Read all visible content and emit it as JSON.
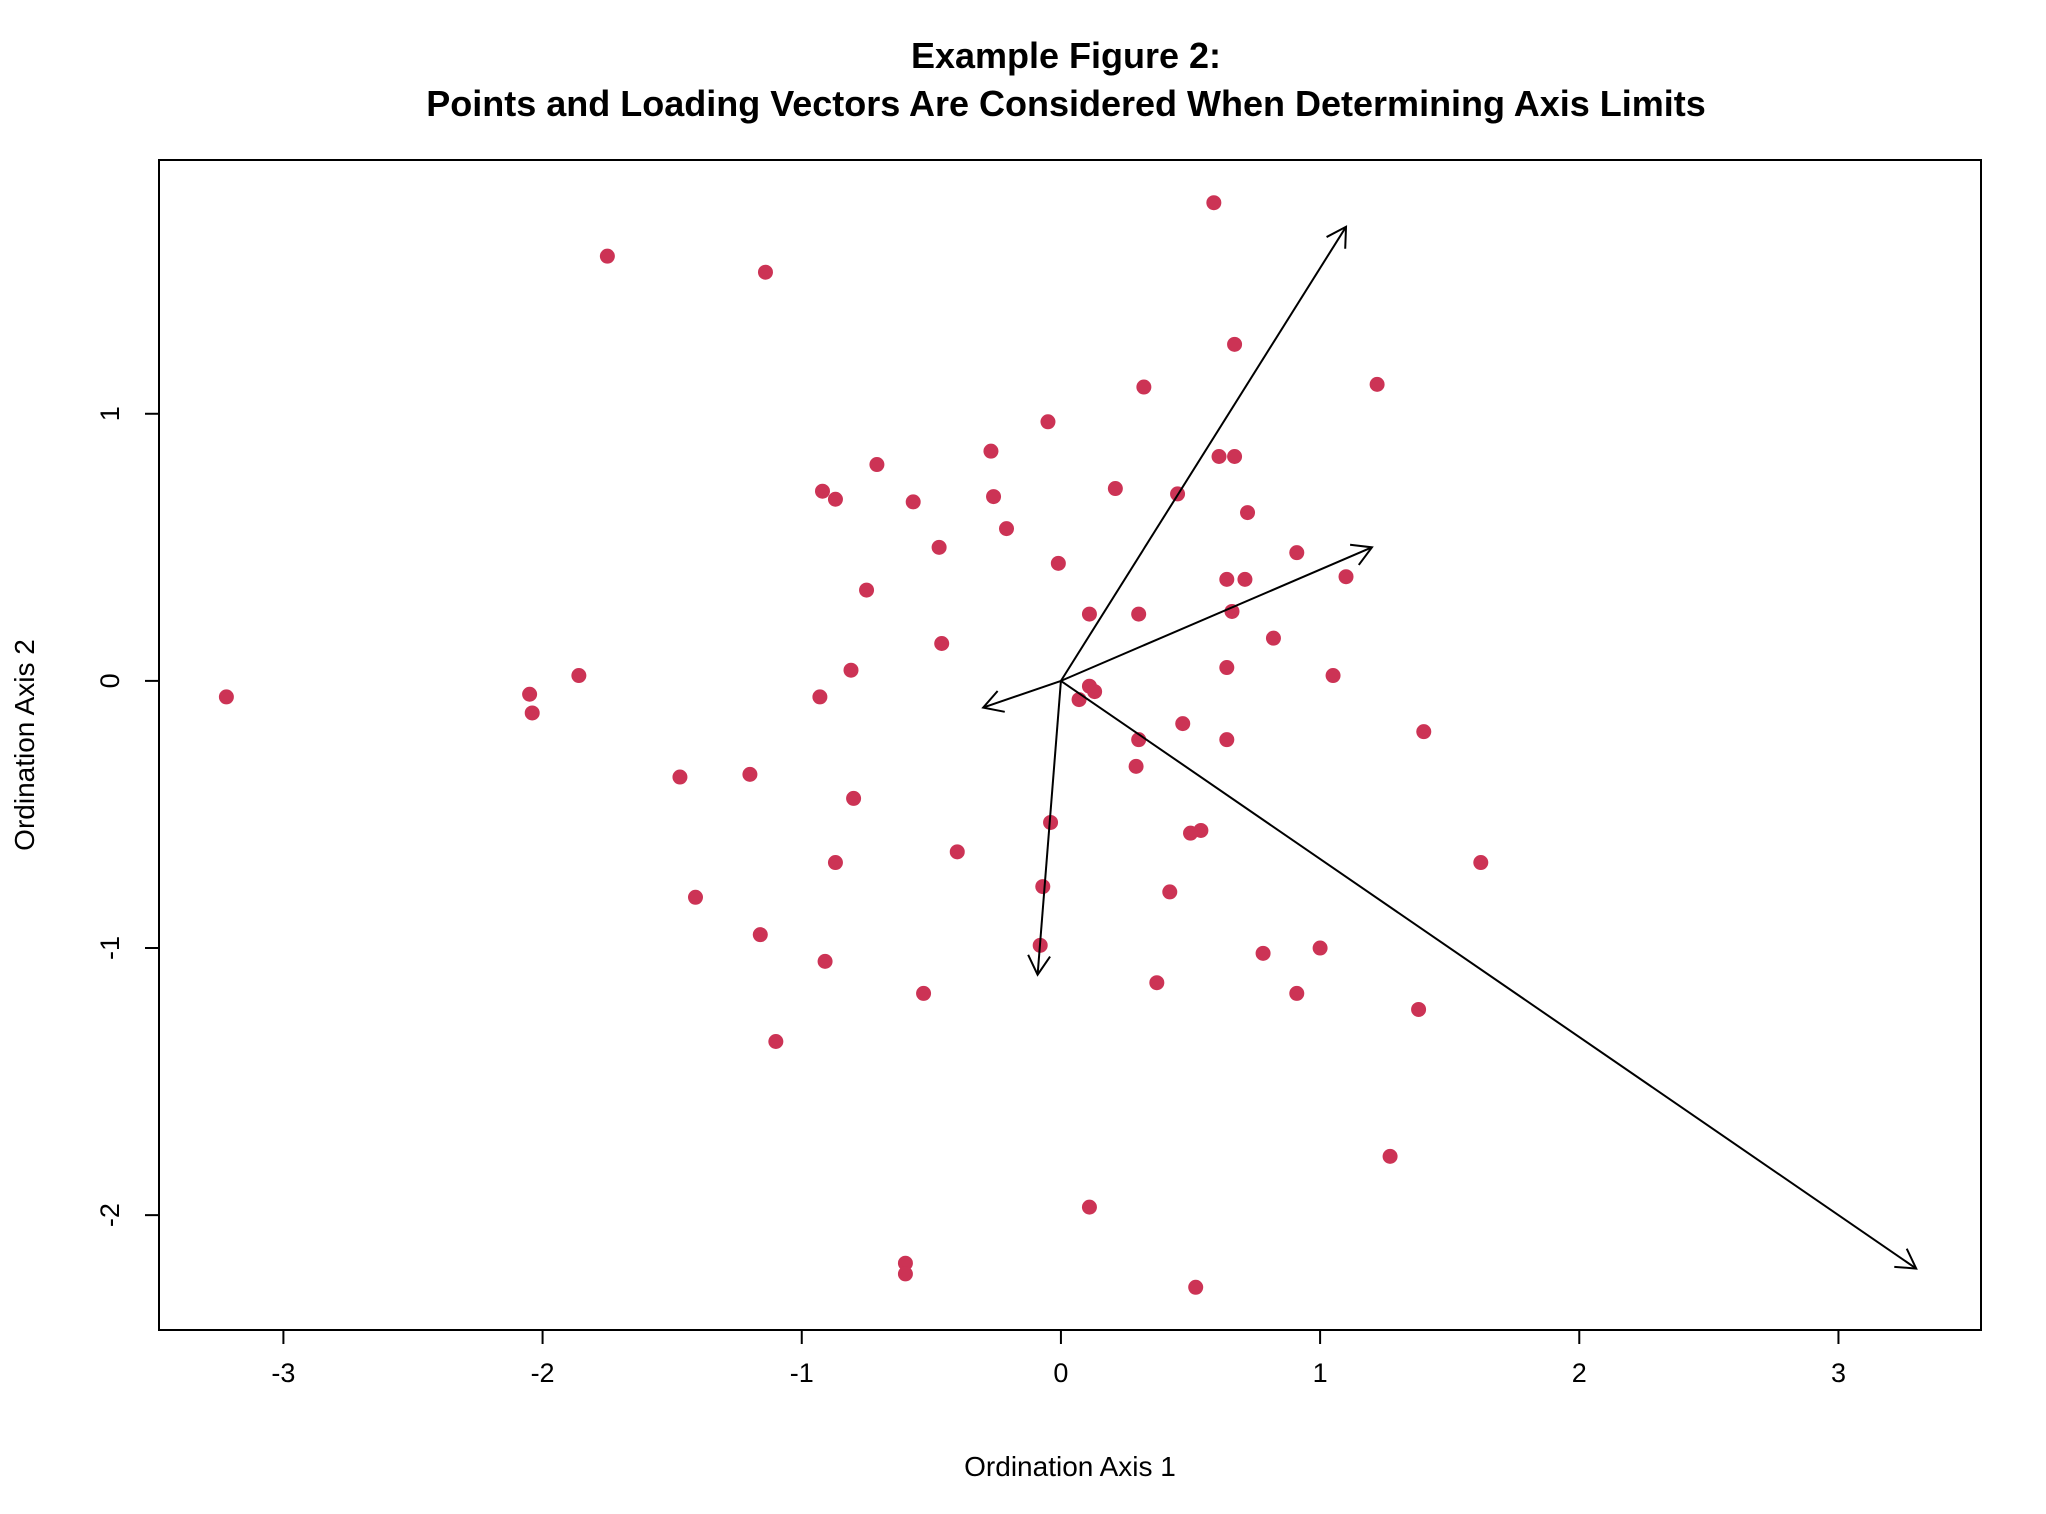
{
  "chart_data": {
    "type": "scatter",
    "title_lines": [
      "Example Figure 2:",
      "Points and Loading Vectors Are Considered When Determining Axis Limits"
    ],
    "xlabel": "Ordination Axis 1",
    "ylabel": "Ordination Axis 2",
    "xlim": [
      -3.48,
      3.55
    ],
    "ylim": [
      -2.43,
      1.95
    ],
    "xticks": [
      -3,
      -2,
      -1,
      0,
      1,
      2,
      3
    ],
    "yticks": [
      -2,
      -1,
      0,
      1
    ],
    "grid": false,
    "legend": "none",
    "point_color": "#cc3355",
    "vector_color": "#000000",
    "points": [
      [
        0.59,
        1.79
      ],
      [
        -1.75,
        1.59
      ],
      [
        -1.14,
        1.53
      ],
      [
        0.67,
        1.26
      ],
      [
        1.22,
        1.11
      ],
      [
        0.32,
        1.1
      ],
      [
        -0.05,
        0.97
      ],
      [
        -0.27,
        0.86
      ],
      [
        0.61,
        0.84
      ],
      [
        0.67,
        0.84
      ],
      [
        -0.71,
        0.81
      ],
      [
        0.21,
        0.72
      ],
      [
        -0.92,
        0.71
      ],
      [
        0.45,
        0.7
      ],
      [
        -0.26,
        0.69
      ],
      [
        -0.87,
        0.68
      ],
      [
        -0.57,
        0.67
      ],
      [
        0.72,
        0.63
      ],
      [
        -0.21,
        0.57
      ],
      [
        -0.47,
        0.5
      ],
      [
        0.91,
        0.48
      ],
      [
        -0.01,
        0.44
      ],
      [
        1.1,
        0.39
      ],
      [
        0.64,
        0.38
      ],
      [
        0.71,
        0.38
      ],
      [
        -0.75,
        0.34
      ],
      [
        0.66,
        0.26
      ],
      [
        0.3,
        0.25
      ],
      [
        0.11,
        0.25
      ],
      [
        0.82,
        0.16
      ],
      [
        -0.46,
        0.14
      ],
      [
        1.05,
        0.02
      ],
      [
        0.64,
        0.05
      ],
      [
        -0.81,
        0.04
      ],
      [
        -1.86,
        0.02
      ],
      [
        0.11,
        -0.02
      ],
      [
        0.13,
        -0.04
      ],
      [
        0.07,
        -0.07
      ],
      [
        -3.22,
        -0.06
      ],
      [
        -2.05,
        -0.05
      ],
      [
        -2.04,
        -0.12
      ],
      [
        -0.93,
        -0.06
      ],
      [
        1.4,
        -0.19
      ],
      [
        0.47,
        -0.16
      ],
      [
        0.3,
        -0.22
      ],
      [
        0.64,
        -0.22
      ],
      [
        0.29,
        -0.32
      ],
      [
        -1.2,
        -0.35
      ],
      [
        -1.47,
        -0.36
      ],
      [
        -0.8,
        -0.44
      ],
      [
        -0.04,
        -0.53
      ],
      [
        0.54,
        -0.56
      ],
      [
        0.5,
        -0.57
      ],
      [
        -0.4,
        -0.64
      ],
      [
        -0.87,
        -0.68
      ],
      [
        1.62,
        -0.68
      ],
      [
        -0.07,
        -0.77
      ],
      [
        0.42,
        -0.79
      ],
      [
        -1.41,
        -0.81
      ],
      [
        -1.16,
        -0.95
      ],
      [
        -0.08,
        -0.99
      ],
      [
        1.0,
        -1.0
      ],
      [
        0.78,
        -1.02
      ],
      [
        -0.91,
        -1.05
      ],
      [
        0.37,
        -1.13
      ],
      [
        -0.53,
        -1.17
      ],
      [
        0.91,
        -1.17
      ],
      [
        1.38,
        -1.23
      ],
      [
        -1.1,
        -1.35
      ],
      [
        1.27,
        -1.78
      ],
      [
        0.11,
        -1.97
      ],
      [
        -0.6,
        -2.18
      ],
      [
        -0.6,
        -2.22
      ],
      [
        0.52,
        -2.27
      ]
    ],
    "vectors": [
      [
        1.1,
        1.7
      ],
      [
        1.2,
        0.5
      ],
      [
        -0.3,
        -0.1
      ],
      [
        -0.09,
        -1.1
      ],
      [
        3.3,
        -2.2
      ]
    ]
  }
}
